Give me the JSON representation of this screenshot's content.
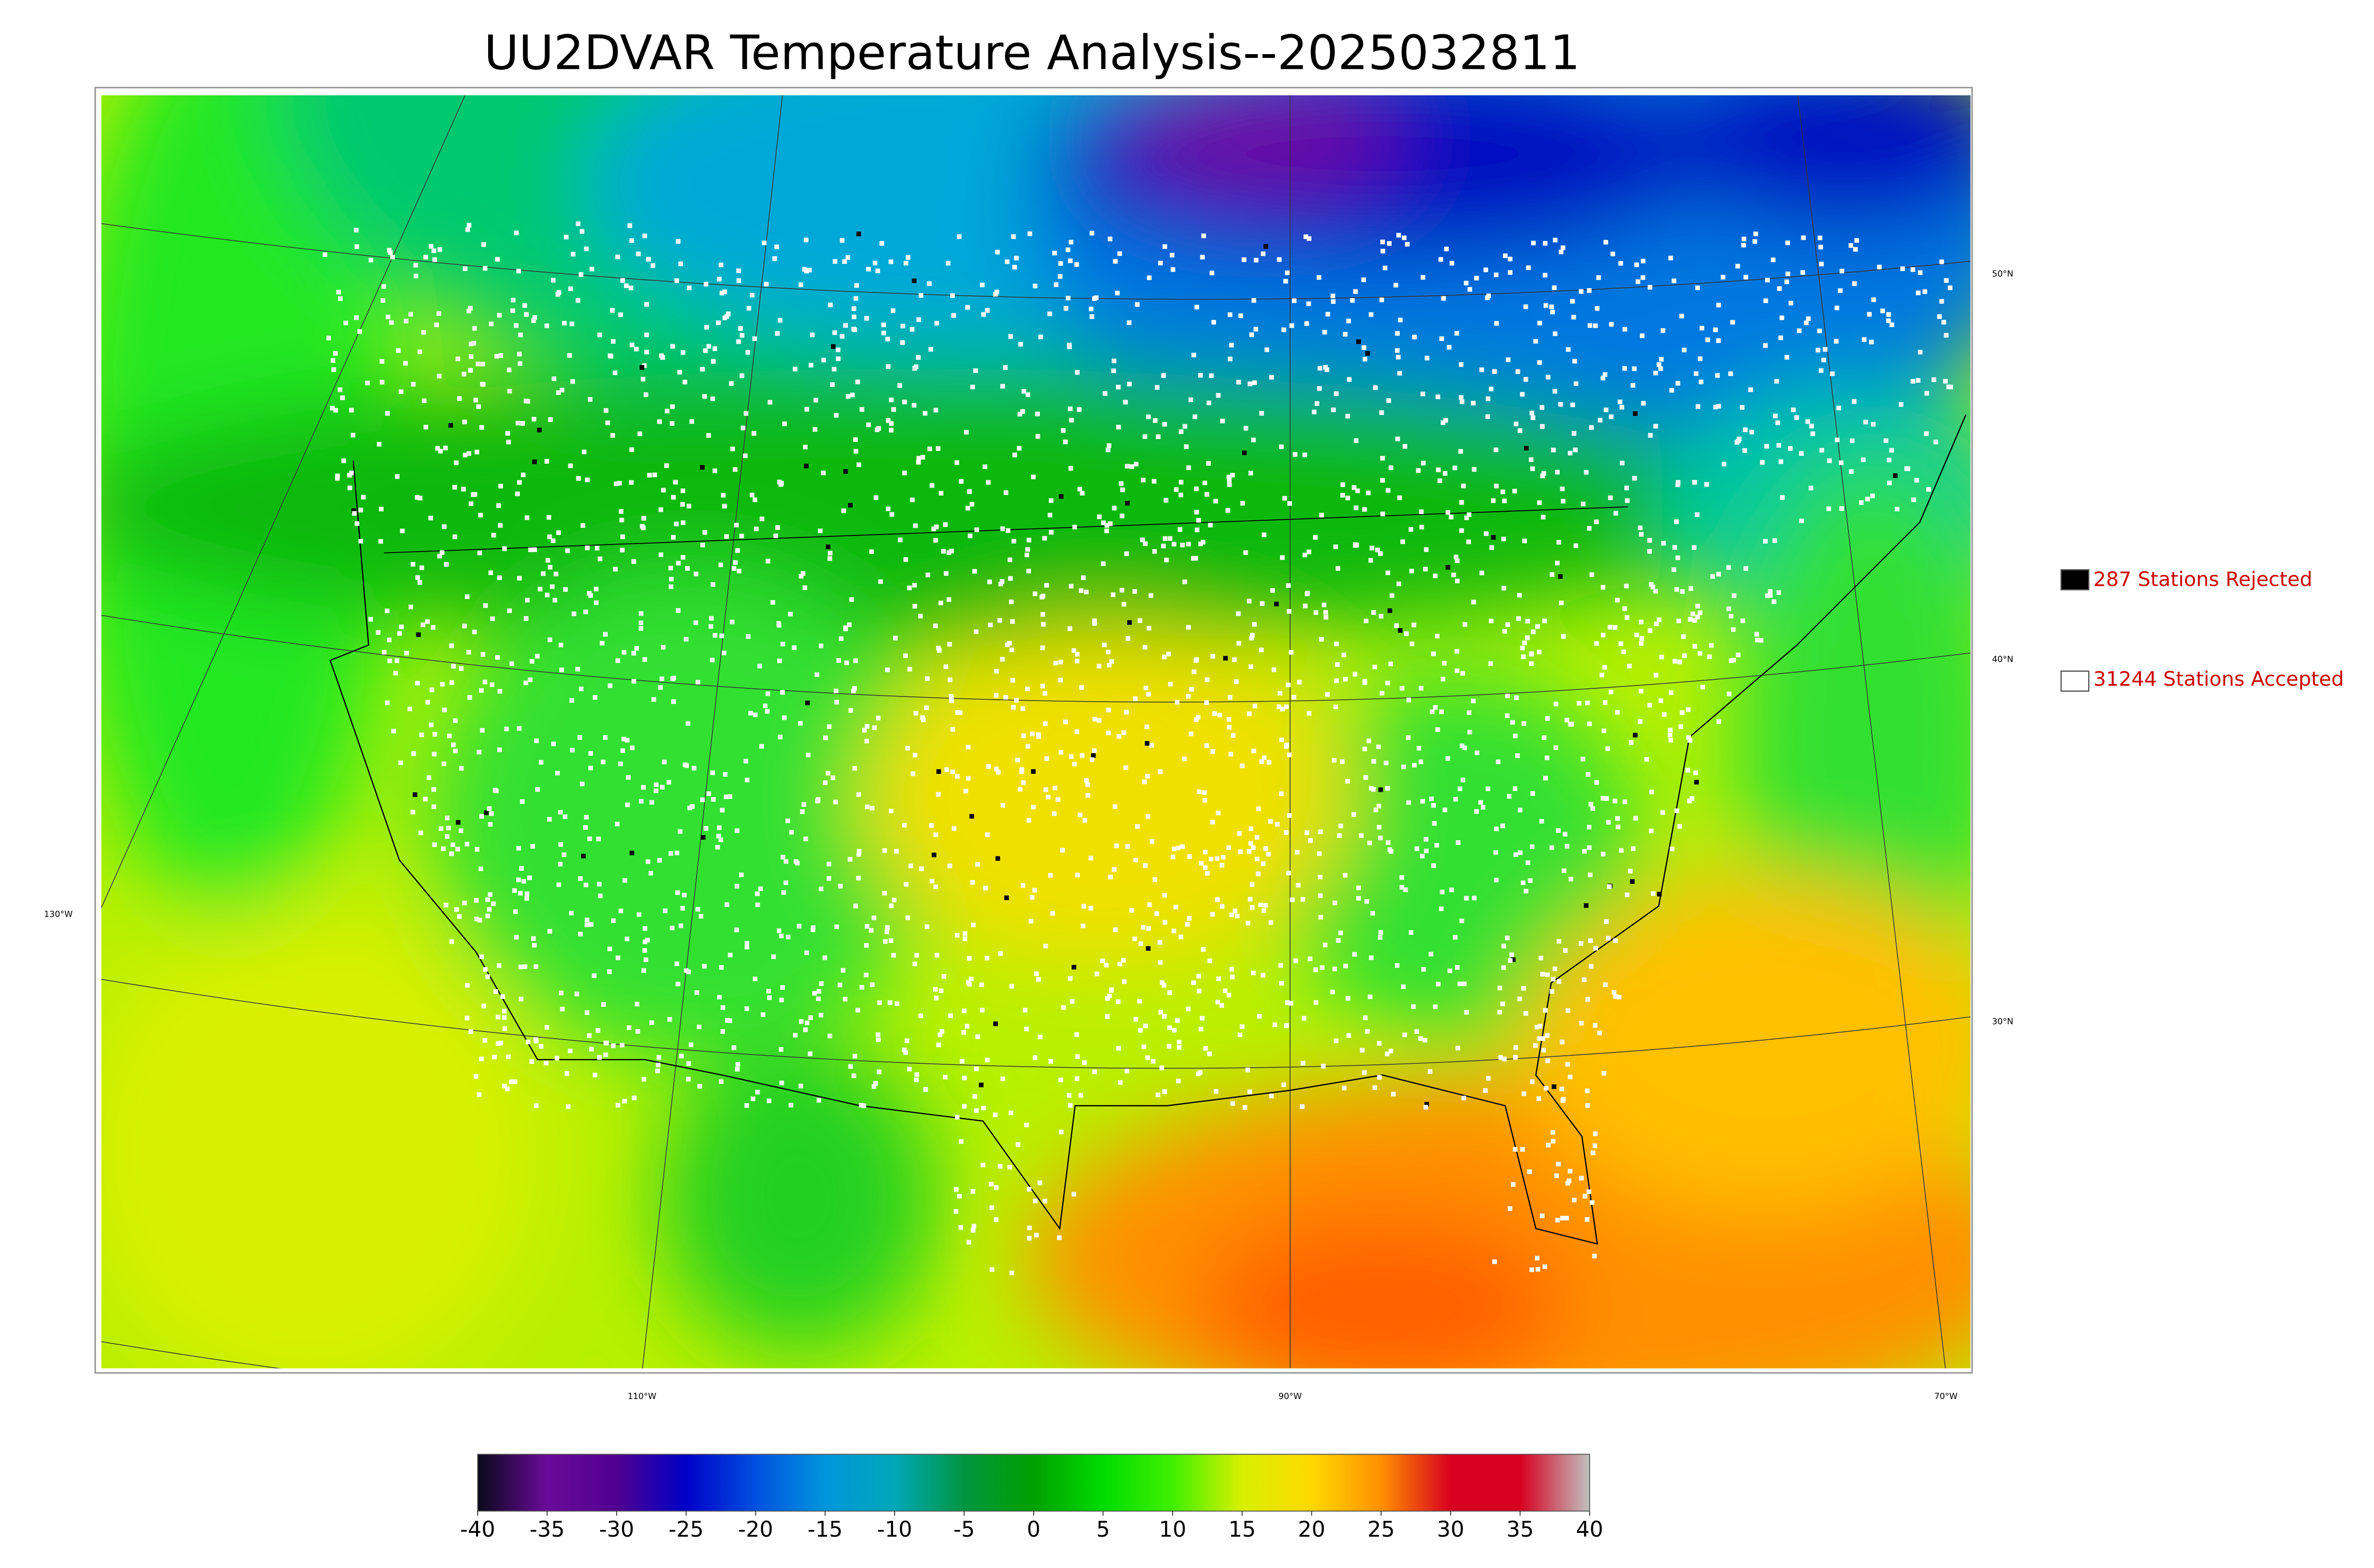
{
  "title": "UU2DVAR Temperature Analysis--2025032811",
  "legend": [
    {
      "label": "287 Stations Rejected",
      "color": "#000000"
    },
    {
      "label": "31244 Stations Accepted",
      "color": "#ffffff"
    }
  ],
  "colorbar": {
    "lim": [
      -40,
      40
    ],
    "ticks": [
      -40,
      -35,
      -30,
      -25,
      -20,
      -15,
      -10,
      -5,
      0,
      5,
      10,
      15,
      20,
      25,
      30,
      35,
      40
    ],
    "colormap": [
      "#0a0a1a",
      "#6a0a9a",
      "#500090",
      "#0000c8",
      "#0050e0",
      "#0096dc",
      "#00a8b8",
      "#009640",
      "#00a000",
      "#00dc00",
      "#40f000",
      "#d8f000",
      "#ffd800",
      "#ff9000",
      "#d80020",
      "#d80020",
      "#c0c0c0"
    ]
  },
  "lat_labels": [
    "50°N",
    "40°N",
    "30°N"
  ],
  "lon_labels": [
    "130°W",
    "110°W",
    "90°W",
    "70°W"
  ]
}
